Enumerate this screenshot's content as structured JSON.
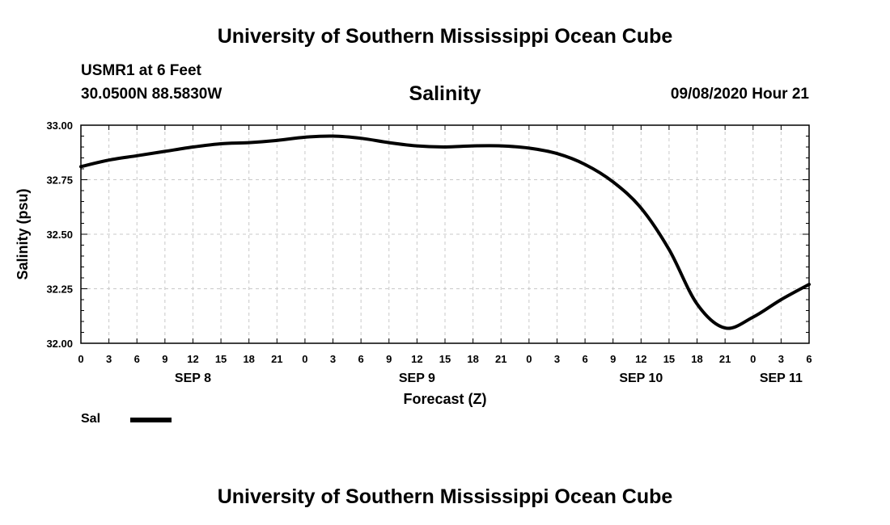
{
  "header": {
    "title": "University of Southern Mississippi Ocean Cube",
    "station": "USMR1 at 6 Feet",
    "coordinates": "30.0500N 88.5830W",
    "variable_title": "Salinity",
    "issued": "09/08/2020 Hour 21"
  },
  "footer": {
    "title": "University of Southern Mississippi Ocean Cube"
  },
  "legend": {
    "label": "Sal",
    "color": "#000000"
  },
  "chart_data": {
    "type": "line",
    "title": "Salinity",
    "xlabel": "Forecast (Z)",
    "ylabel": "Salinity (psu)",
    "ylim": [
      32.0,
      33.0
    ],
    "yticks": [
      "32.00",
      "32.25",
      "32.50",
      "32.75",
      "33.00"
    ],
    "ytick_values": [
      32.0,
      32.25,
      32.5,
      32.75,
      33.0
    ],
    "xlim": [
      0,
      78
    ],
    "x_tick_hours": [
      0,
      3,
      6,
      9,
      12,
      15,
      18,
      21,
      24,
      27,
      30,
      33,
      36,
      39,
      42,
      45,
      48,
      51,
      54,
      57,
      60,
      63,
      66,
      69,
      72,
      75,
      78
    ],
    "x_tick_labels": [
      "0",
      "3",
      "6",
      "9",
      "12",
      "15",
      "18",
      "21",
      "0",
      "3",
      "6",
      "9",
      "12",
      "15",
      "18",
      "21",
      "0",
      "3",
      "6",
      "9",
      "12",
      "15",
      "18",
      "21",
      "0",
      "3",
      "6"
    ],
    "day_labels": [
      {
        "label": "SEP 8",
        "hour": 12
      },
      {
        "label": "SEP 9",
        "hour": 36
      },
      {
        "label": "SEP 10",
        "hour": 60
      },
      {
        "label": "SEP 11",
        "hour": 75
      }
    ],
    "grid": true,
    "series": [
      {
        "name": "Sal",
        "color": "#000000",
        "x": [
          0,
          3,
          6,
          9,
          12,
          15,
          18,
          21,
          24,
          27,
          30,
          33,
          36,
          39,
          42,
          45,
          48,
          51,
          54,
          57,
          60,
          63,
          66,
          69,
          72,
          75,
          78
        ],
        "values": [
          32.81,
          32.84,
          32.86,
          32.88,
          32.9,
          32.915,
          32.92,
          32.93,
          32.945,
          32.95,
          32.94,
          32.92,
          32.905,
          32.9,
          32.905,
          32.905,
          32.895,
          32.87,
          32.82,
          32.74,
          32.62,
          32.43,
          32.18,
          32.07,
          32.12,
          32.2,
          32.27
        ]
      }
    ]
  }
}
